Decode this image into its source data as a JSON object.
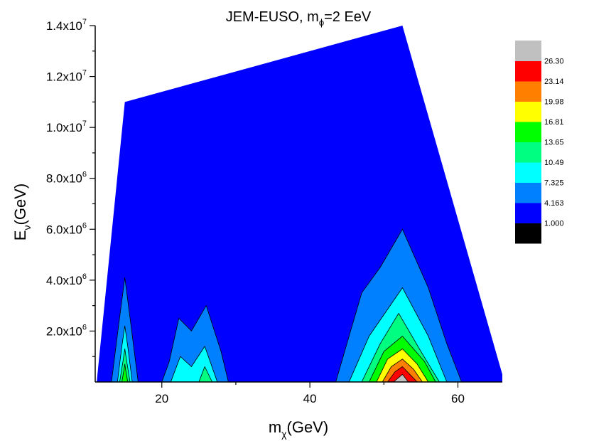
{
  "chart_data": {
    "type": "contour",
    "title": {
      "main": "JEM-EUSO, m",
      "sub": "ϕ",
      "tail": "=2 EeV"
    },
    "xlabel": {
      "main": "m",
      "sub": "χ",
      "tail": "(GeV)"
    },
    "ylabel": {
      "main": "E",
      "sub": "ν",
      "tail": "(GeV)"
    },
    "xlim": [
      11,
      66
    ],
    "ylim": [
      0,
      14000000
    ],
    "xticks": [
      {
        "value": 20,
        "label": "20"
      },
      {
        "value": 40,
        "label": "40"
      },
      {
        "value": 60,
        "label": "60"
      }
    ],
    "yticks": [
      {
        "value": 2000000,
        "mant": "2.0x10",
        "exp": "6"
      },
      {
        "value": 4000000,
        "mant": "4.0x10",
        "exp": "6"
      },
      {
        "value": 6000000,
        "mant": "6.0x10",
        "exp": "6"
      },
      {
        "value": 8000000,
        "mant": "8.0x10",
        "exp": "6"
      },
      {
        "value": 10000000,
        "mant": "1.0x10",
        "exp": "7"
      },
      {
        "value": 12000000,
        "mant": "1.2x10",
        "exp": "7"
      },
      {
        "value": 14000000,
        "mant": "1.4x10",
        "exp": "7"
      }
    ],
    "grid": false,
    "legend_placement": "right",
    "colorbar": {
      "levels": [
        "1.000",
        "4.163",
        "7.325",
        "10.49",
        "13.65",
        "16.81",
        "19.98",
        "23.14",
        "26.30"
      ],
      "colors": [
        "#000000",
        "#0000ff",
        "#0080ff",
        "#00ffff",
        "#00ff80",
        "#00ff00",
        "#ffff00",
        "#ff8000",
        "#ff0000",
        "#c0c0c0"
      ]
    },
    "regions": [
      {
        "name": "domain",
        "level": 1,
        "points": [
          [
            11.2,
            0
          ],
          [
            15,
            11000000
          ],
          [
            52.5,
            14000000
          ],
          [
            66,
            300000
          ],
          [
            66,
            0
          ]
        ]
      },
      {
        "name": "peak-15-l2",
        "level": 2,
        "points": [
          [
            13.2,
            0
          ],
          [
            14.2,
            2300000
          ],
          [
            15,
            4100000
          ],
          [
            15.8,
            2300000
          ],
          [
            16.8,
            0
          ]
        ]
      },
      {
        "name": "peak-15-l3",
        "level": 3,
        "points": [
          [
            14,
            0
          ],
          [
            14.6,
            1400000
          ],
          [
            15,
            2200000
          ],
          [
            15.4,
            1400000
          ],
          [
            16,
            0
          ]
        ]
      },
      {
        "name": "peak-15-l4",
        "level": 4,
        "points": [
          [
            14.3,
            0
          ],
          [
            14.8,
            900000
          ],
          [
            15,
            1300000
          ],
          [
            15.2,
            900000
          ],
          [
            15.7,
            0
          ]
        ]
      },
      {
        "name": "peak-15-l5",
        "level": 5,
        "points": [
          [
            14.6,
            0
          ],
          [
            14.9,
            500000
          ],
          [
            15,
            700000
          ],
          [
            15.1,
            500000
          ],
          [
            15.4,
            0
          ]
        ]
      },
      {
        "name": "peak-24-l2",
        "level": 2,
        "points": [
          [
            20,
            0
          ],
          [
            21,
            800000
          ],
          [
            22.3,
            2500000
          ],
          [
            24,
            2000000
          ],
          [
            26,
            3000000
          ],
          [
            28,
            1200000
          ],
          [
            29,
            0
          ]
        ]
      },
      {
        "name": "peak-24-l3",
        "level": 3,
        "points": [
          [
            21.2,
            0
          ],
          [
            22.5,
            1000000
          ],
          [
            24,
            600000
          ],
          [
            25.8,
            1400000
          ],
          [
            27.5,
            0
          ]
        ]
      },
      {
        "name": "peak-24-l4",
        "level": 4,
        "points": [
          [
            25,
            0
          ],
          [
            25.8,
            600000
          ],
          [
            26.8,
            0
          ]
        ]
      },
      {
        "name": "peak-52-l2",
        "level": 2,
        "points": [
          [
            43.5,
            0
          ],
          [
            45,
            1500000
          ],
          [
            47,
            3500000
          ],
          [
            49.5,
            4500000
          ],
          [
            52.5,
            6000000
          ],
          [
            56,
            3700000
          ],
          [
            58.5,
            1500000
          ],
          [
            60.5,
            0
          ]
        ]
      },
      {
        "name": "peak-52-l3",
        "level": 3,
        "points": [
          [
            45.3,
            0
          ],
          [
            48,
            1800000
          ],
          [
            52.5,
            3700000
          ],
          [
            56,
            1800000
          ],
          [
            58.5,
            0
          ]
        ]
      },
      {
        "name": "peak-52-l4",
        "level": 4,
        "points": [
          [
            47,
            0
          ],
          [
            49.5,
            1500000
          ],
          [
            52,
            2700000
          ],
          [
            55,
            1200000
          ],
          [
            57.5,
            0
          ]
        ]
      },
      {
        "name": "peak-52-l5",
        "level": 5,
        "points": [
          [
            48,
            0
          ],
          [
            50,
            1200000
          ],
          [
            52.5,
            1800000
          ],
          [
            55.5,
            800000
          ],
          [
            57,
            0
          ]
        ]
      },
      {
        "name": "peak-52-l6",
        "level": 6,
        "points": [
          [
            49,
            0
          ],
          [
            50.5,
            900000
          ],
          [
            52.5,
            1300000
          ],
          [
            54.5,
            700000
          ],
          [
            56,
            0
          ]
        ]
      },
      {
        "name": "peak-52-l7",
        "level": 7,
        "points": [
          [
            49.8,
            0
          ],
          [
            51,
            600000
          ],
          [
            52.5,
            900000
          ],
          [
            54,
            500000
          ],
          [
            55.2,
            0
          ]
        ]
      },
      {
        "name": "peak-52-l8",
        "level": 8,
        "points": [
          [
            50.5,
            0
          ],
          [
            51.5,
            400000
          ],
          [
            52.5,
            600000
          ],
          [
            53.5,
            300000
          ],
          [
            54.5,
            0
          ]
        ]
      },
      {
        "name": "peak-52-l9",
        "level": 9,
        "points": [
          [
            51.3,
            0
          ],
          [
            52.5,
            300000
          ],
          [
            53.3,
            0
          ]
        ]
      }
    ]
  }
}
